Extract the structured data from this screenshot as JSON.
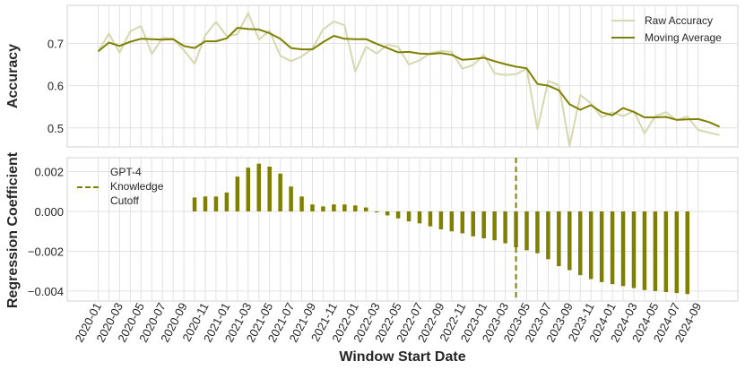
{
  "chart_data": [
    {
      "type": "line",
      "ylabel": "Accuracy",
      "ylim": [
        0.455,
        0.79
      ],
      "yticks": [
        "0.5",
        "0.6",
        "0.7"
      ],
      "grid": true,
      "legend_position": "top-right",
      "colors": {
        "raw": "#d6d8b0",
        "moving_average": "#808000"
      },
      "series": [
        {
          "name": "Raw Accuracy",
          "values": [
            0.681,
            0.723,
            0.678,
            0.729,
            0.741,
            0.675,
            0.713,
            0.711,
            0.684,
            0.652,
            0.719,
            0.751,
            0.717,
            0.722,
            0.772,
            0.709,
            0.73,
            0.671,
            0.658,
            0.669,
            0.688,
            0.733,
            0.752,
            0.743,
            0.633,
            0.692,
            0.676,
            0.697,
            0.692,
            0.65,
            0.66,
            0.677,
            0.682,
            0.68,
            0.64,
            0.649,
            0.673,
            0.629,
            0.625,
            0.627,
            0.64,
            0.497,
            0.611,
            0.601,
            0.457,
            0.578,
            0.558,
            0.525,
            0.537,
            0.528,
            0.54,
            0.487,
            0.528,
            0.537,
            0.518,
            0.527,
            0.495,
            0.489,
            0.483
          ]
        },
        {
          "name": "Moving Average",
          "values": [
            0.681,
            0.702,
            0.694,
            0.704,
            0.711,
            0.71,
            0.709,
            0.71,
            0.694,
            0.689,
            0.705,
            0.705,
            0.712,
            0.737,
            0.734,
            0.733,
            0.724,
            0.711,
            0.689,
            0.686,
            0.686,
            0.703,
            0.718,
            0.711,
            0.71,
            0.71,
            0.699,
            0.689,
            0.679,
            0.68,
            0.676,
            0.675,
            0.677,
            0.673,
            0.661,
            0.663,
            0.666,
            0.658,
            0.651,
            0.645,
            0.641,
            0.604,
            0.6,
            0.589,
            0.556,
            0.543,
            0.554,
            0.537,
            0.53,
            0.547,
            0.538,
            0.525,
            0.525,
            0.526,
            0.519,
            0.52,
            0.521,
            0.514,
            0.503
          ]
        }
      ]
    },
    {
      "type": "bar",
      "ylabel": "Regression Coefficient",
      "xlabel": "Window Start Date",
      "ylim": [
        -0.0045,
        0.0027
      ],
      "yticks": [
        "0.002",
        "0.000",
        "−0.002",
        "−0.004"
      ],
      "grid": true,
      "legend_position": "top-left",
      "bar_color": "#808000",
      "cutoff_color": "#808000",
      "cutoff": {
        "label_lines": [
          "GPT-4",
          "Knowledge",
          "Cutoff"
        ],
        "x": "2023-04"
      },
      "x_months": [
        "2020-01",
        "2020-02",
        "2020-03",
        "2020-04",
        "2020-05",
        "2020-06",
        "2020-07",
        "2020-08",
        "2020-09",
        "2020-10",
        "2020-11",
        "2020-12",
        "2021-01",
        "2021-02",
        "2021-03",
        "2021-04",
        "2021-05",
        "2021-06",
        "2021-07",
        "2021-08",
        "2021-09",
        "2021-10",
        "2021-11",
        "2021-12",
        "2022-01",
        "2022-02",
        "2022-03",
        "2022-04",
        "2022-05",
        "2022-06",
        "2022-07",
        "2022-08",
        "2022-09",
        "2022-10",
        "2022-11",
        "2022-12",
        "2023-01",
        "2023-02",
        "2023-03",
        "2023-04",
        "2023-05",
        "2023-06",
        "2023-07",
        "2023-08",
        "2023-09",
        "2023-10",
        "2023-11",
        "2023-12",
        "2024-01",
        "2024-02",
        "2024-03",
        "2024-04",
        "2024-05",
        "2024-06",
        "2024-07",
        "2024-08",
        "2024-09"
      ],
      "x_tick_labels": [
        "2020-01",
        "2020-03",
        "2020-05",
        "2020-07",
        "2020-09",
        "2020-11",
        "2021-01",
        "2021-03",
        "2021-05",
        "2021-07",
        "2021-09",
        "2021-11",
        "2022-01",
        "2022-03",
        "2022-05",
        "2022-07",
        "2022-09",
        "2022-11",
        "2023-01",
        "2023-03",
        "2023-05",
        "2023-07",
        "2023-09",
        "2023-11",
        "2024-01",
        "2024-03",
        "2024-05",
        "2024-07",
        "2024-09"
      ],
      "values": [
        null,
        null,
        null,
        null,
        null,
        null,
        null,
        null,
        null,
        0.0007,
        0.00075,
        0.00075,
        0.00095,
        0.00175,
        0.0022,
        0.0024,
        0.00225,
        0.0019,
        0.00125,
        0.00075,
        0.00035,
        0.00025,
        0.00035,
        0.00035,
        0.0003,
        0.0002,
        -5e-05,
        -0.0002,
        -0.00035,
        -0.0005,
        -0.0006,
        -0.00075,
        -0.0009,
        -0.001,
        -0.0011,
        -0.00125,
        -0.00135,
        -0.00145,
        -0.0016,
        -0.0018,
        -0.00195,
        -0.0021,
        -0.0024,
        -0.00275,
        -0.00295,
        -0.0032,
        -0.0034,
        -0.00355,
        -0.00365,
        -0.00375,
        -0.00385,
        -0.00395,
        -0.004,
        -0.00405,
        -0.0041,
        -0.00415,
        null
      ]
    }
  ]
}
